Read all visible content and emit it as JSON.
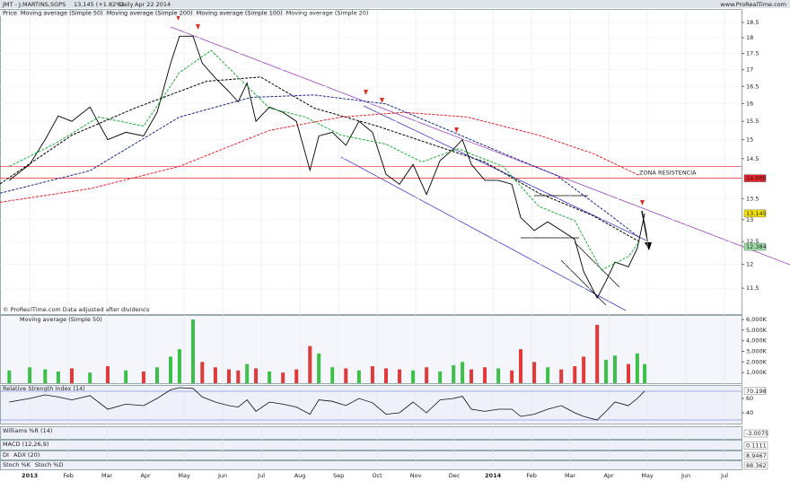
{
  "chart_data": {
    "type": "line",
    "title": "JMT - J.MARTINS,SGPS",
    "quote": "13.145 (+1.82%)",
    "period": "Daily",
    "date": "Apr 22 2014",
    "source": "www.ProRealTime.com",
    "footnote": "© ProRealTime.com Data adjusted after dividends",
    "log": true,
    "xlim": [
      -0.77,
      18.44
    ],
    "xticks": [
      {
        "value": 0,
        "label": "2013"
      },
      {
        "value": 1,
        "label": "Feb"
      },
      {
        "value": 2,
        "label": "Mar"
      },
      {
        "value": 3,
        "label": "Apr"
      },
      {
        "value": 4,
        "label": "May"
      },
      {
        "value": 5,
        "label": "Jun"
      },
      {
        "value": 6,
        "label": "Jul"
      },
      {
        "value": 7,
        "label": "Aug"
      },
      {
        "value": 8,
        "label": "Sep"
      },
      {
        "value": 9,
        "label": "Oct"
      },
      {
        "value": 10,
        "label": "Nov"
      },
      {
        "value": 11,
        "label": "Dec"
      },
      {
        "value": 12,
        "label": "2014"
      },
      {
        "value": 13,
        "label": "Feb"
      },
      {
        "value": 14,
        "label": "Mar"
      },
      {
        "value": 15,
        "label": "Apr"
      },
      {
        "value": 16,
        "label": "May"
      },
      {
        "value": 17,
        "label": "Jun"
      },
      {
        "value": 18,
        "label": "Jul"
      }
    ],
    "ylim": [
      10.98,
      18.92
    ],
    "yticks": [
      11.5,
      12,
      12.5,
      13,
      13.5,
      14.5,
      15,
      15.5,
      16,
      16.5,
      17,
      17.5,
      18,
      18.5
    ],
    "series": [
      {
        "name": "Price",
        "color": "#000000",
        "dash": false,
        "x": [
          -0.53,
          0,
          0.4,
          0.74,
          1.09,
          1.56,
          2.02,
          2.49,
          2.95,
          3.3,
          3.65,
          3.88,
          4.23,
          4.47,
          4.81,
          5.16,
          5.4,
          5.63,
          5.86,
          6.21,
          6.56,
          6.91,
          7.26,
          7.49,
          7.84,
          8.19,
          8.53,
          8.88,
          9.23,
          9.58,
          9.93,
          10.28,
          10.63,
          10.98,
          11.21,
          11.44,
          11.79,
          12.14,
          12.49,
          12.72,
          13.07,
          13.42,
          13.77,
          14.12,
          14.35,
          14.7,
          14.93,
          15.16,
          15.51,
          15.74,
          15.93
        ],
        "values": [
          13.95,
          14.35,
          15.0,
          15.65,
          15.5,
          15.9,
          15.0,
          15.2,
          15.1,
          15.75,
          17.2,
          18.05,
          18.05,
          17.2,
          16.75,
          16.35,
          16.05,
          16.6,
          15.5,
          15.9,
          15.75,
          15.5,
          14.2,
          15.1,
          15.2,
          14.85,
          15.5,
          15.2,
          14.1,
          13.85,
          14.35,
          13.6,
          14.45,
          14.75,
          15.0,
          14.35,
          13.95,
          13.95,
          13.85,
          13.05,
          12.75,
          12.95,
          12.75,
          12.55,
          11.85,
          11.3,
          11.65,
          12.05,
          11.95,
          12.35,
          13.145
        ]
      },
      {
        "name": "Moving average (Simple 50)",
        "color": "#000000",
        "dash": true,
        "x": [
          -0.77,
          1.09,
          2.72,
          4.58,
          5.98,
          7.37,
          9.0,
          10.4,
          11.79,
          13.19,
          14.58,
          15.79
        ],
        "values": [
          13.86,
          15.12,
          15.87,
          16.65,
          16.78,
          15.87,
          15.37,
          14.88,
          14.41,
          13.63,
          13.1,
          12.5
        ]
      },
      {
        "name": "Moving average (Simple 200)",
        "color": "#e8202a",
        "dash": true,
        "x": [
          -0.77,
          1.56,
          3.88,
          6.21,
          8.07,
          9.7,
          11.33,
          13.19,
          14.58,
          15.79
        ],
        "values": [
          13.41,
          13.74,
          14.3,
          15.25,
          15.62,
          15.75,
          15.62,
          15.12,
          14.64,
          14.07
        ]
      },
      {
        "name": "Moving average (Simple 100)",
        "color": "#1c2a8c",
        "dash": true,
        "x": [
          -0.77,
          1.56,
          3.88,
          5.74,
          7.37,
          9.23,
          10.86,
          12.26,
          13.65,
          15.05,
          15.79
        ],
        "values": [
          13.63,
          14.19,
          15.62,
          16.18,
          16.25,
          15.99,
          15.25,
          14.64,
          14.07,
          13.1,
          12.59
        ]
      },
      {
        "name": "Moving average (Simple 20)",
        "color": "#1fae3a",
        "dash": true,
        "x": [
          -0.53,
          0.63,
          1.79,
          2.95,
          3.88,
          4.7,
          5.28,
          6.21,
          7.14,
          8.07,
          9.23,
          10.16,
          11.09,
          12.26,
          13.19,
          14.12,
          14.81,
          15.51,
          15.79
        ],
        "values": [
          14.3,
          14.88,
          15.62,
          15.37,
          16.91,
          17.6,
          16.91,
          15.87,
          15.62,
          15.12,
          14.88,
          14.41,
          14.76,
          14.3,
          13.31,
          12.98,
          11.88,
          12.17,
          12.5
        ]
      }
    ],
    "price_boxes": [
      {
        "value": 14.0,
        "label": "14.000",
        "color": "#e8202a"
      },
      {
        "value": 13.145,
        "label": "13.145",
        "color": "#f5e400"
      },
      {
        "value": 12.384,
        "label": "12.384",
        "color": "#9fe0a8"
      }
    ],
    "resistance_lines": [
      14.3,
      14.0
    ],
    "annotation": "ZONA RESISTENCIA",
    "volume": {
      "title": "Moving average (Simple 50)",
      "ylim": [
        0,
        6340
      ],
      "yticks": [
        {
          "value": 1000,
          "label": "1,000K"
        },
        {
          "value": 2000,
          "label": "2,000K"
        },
        {
          "value": 3000,
          "label": "3,000K"
        },
        {
          "value": 4000,
          "label": "4,000K"
        },
        {
          "value": 5000,
          "label": "5,000K"
        },
        {
          "value": 6000,
          "label": "6,000K"
        }
      ],
      "values": [
        1200,
        1500,
        1300,
        1100,
        1400,
        1000,
        1600,
        1200,
        1100,
        1500,
        2500,
        3200,
        6000,
        2000,
        1500,
        1300,
        1200,
        1800,
        1400,
        1100,
        1000,
        1300,
        3500,
        2800,
        1500,
        1400,
        1200,
        1600,
        1400,
        1300,
        1200,
        1500,
        1100,
        1700,
        2000,
        1300,
        1500,
        1400,
        1200,
        3200,
        2000,
        1500,
        1300,
        1600,
        2500,
        5500,
        2200,
        2600,
        1800,
        2800,
        1800
      ]
    },
    "rsi": {
      "title": "Relative Strength Index (14)",
      "ylim": [
        25,
        77.5
      ],
      "yticks": [
        40,
        60
      ],
      "levels": [
        70,
        30
      ],
      "values": [
        55,
        60,
        65,
        62,
        58,
        64,
        45,
        52,
        50,
        60,
        72,
        75,
        74,
        62,
        55,
        50,
        48,
        58,
        42,
        55,
        52,
        48,
        38,
        58,
        56,
        50,
        60,
        54,
        38,
        40,
        55,
        40,
        58,
        60,
        63,
        45,
        42,
        45,
        45,
        35,
        38,
        45,
        50,
        40,
        35,
        30,
        42,
        55,
        50,
        60,
        70.198
      ],
      "last": {
        "value": 70.198,
        "label": "70.198"
      }
    },
    "indicators": [
      {
        "titles": [
          "Williams %R (14)"
        ],
        "last": "-3.0075"
      },
      {
        "titles": [
          "MACD (12,26,9)"
        ],
        "last": "0.1111"
      },
      {
        "titles": [
          "DI",
          "ADX (20)"
        ],
        "last": "8.9467"
      },
      {
        "titles": [
          "Stoch %K",
          "Stoch %D"
        ],
        "last": "88.362"
      }
    ]
  }
}
